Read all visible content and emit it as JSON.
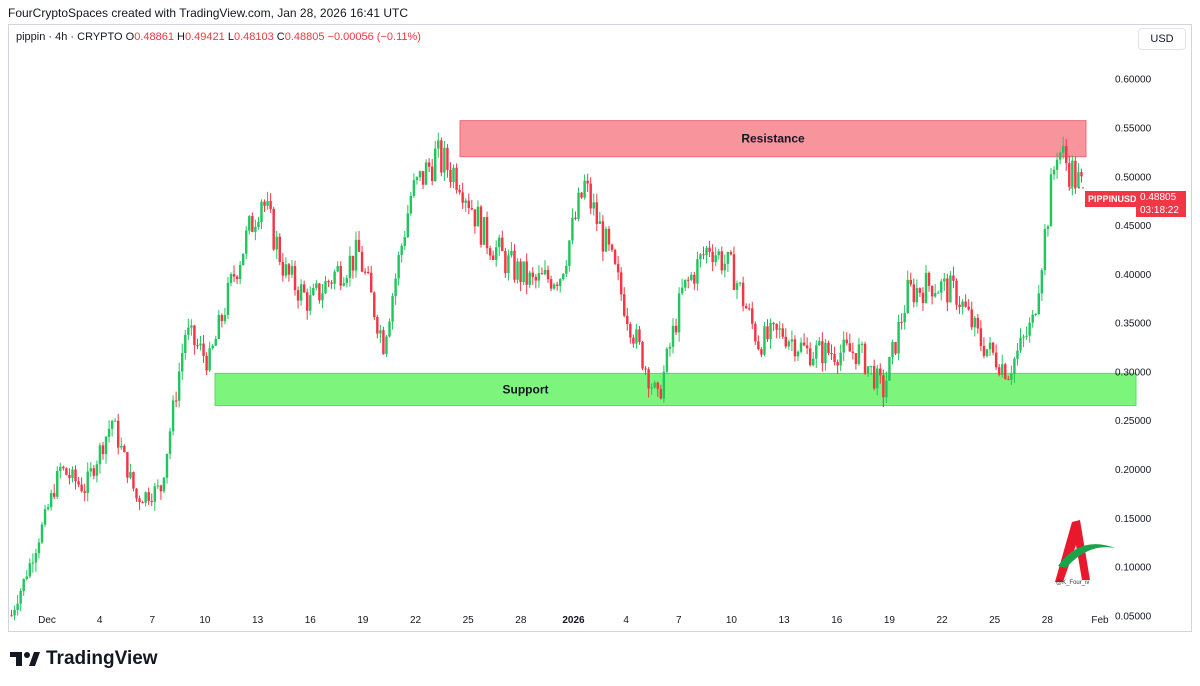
{
  "header": {
    "created_line": "FourCryptoSpaces created with TradingView.com, Jan 28, 2026 16:41 UTC"
  },
  "legend": {
    "prefix": "pippin · 4h · CRYPTO",
    "o_label": "O",
    "o_value": "0.48861",
    "h_label": "H",
    "h_value": "0.49421",
    "l_label": "L",
    "l_value": "0.48103",
    "c_label": "C",
    "c_value": "0.48805",
    "change": "−0.00056 (−0.11%)"
  },
  "currency_button": "USD",
  "price_tag": {
    "symbol": "PIPPINUSD",
    "price": "0.48805",
    "countdown": "03:18:22"
  },
  "watermark": {
    "handle": "@K_Four_iv"
  },
  "footer": {
    "brand": "TradingView"
  },
  "colors": {
    "up": "#089981",
    "up_bright": "#22c55e",
    "down": "#f23645",
    "resistance_fill": "#f7949c",
    "support_fill": "#7df57d"
  },
  "chart_data": {
    "type": "candlestick",
    "symbol": "pippin",
    "timeframe": "4h",
    "y_axis": {
      "ticks": [
        "0.60000",
        "0.55000",
        "0.50000",
        "0.45000",
        "0.40000",
        "0.35000",
        "0.30000",
        "0.25000",
        "0.20000",
        "0.15000",
        "0.10000",
        "0.05000"
      ],
      "range": [
        0.035,
        0.655
      ]
    },
    "x_axis": {
      "ticks": [
        "Dec",
        "4",
        "7",
        "10",
        "13",
        "16",
        "19",
        "22",
        "25",
        "28",
        "2026",
        "4",
        "7",
        "10",
        "13",
        "16",
        "19",
        "22",
        "25",
        "28",
        "Feb"
      ]
    },
    "zones": [
      {
        "label": "Resistance",
        "low": 0.52,
        "high": 0.557
      },
      {
        "label": "Support",
        "low": 0.265,
        "high": 0.298
      }
    ],
    "approx_close_path": [
      {
        "date": "Dec 1",
        "close": 0.05
      },
      {
        "date": "Dec 3",
        "close": 0.12
      },
      {
        "date": "Dec 4",
        "close": 0.2
      },
      {
        "date": "Dec 6",
        "close": 0.18
      },
      {
        "date": "Dec 7",
        "close": 0.25
      },
      {
        "date": "Dec 8",
        "close": 0.17
      },
      {
        "date": "Dec 9",
        "close": 0.18
      },
      {
        "date": "Dec 10",
        "close": 0.34
      },
      {
        "date": "Dec 12",
        "close": 0.31
      },
      {
        "date": "Dec 15",
        "close": 0.4
      },
      {
        "date": "Dec 16",
        "close": 0.48
      },
      {
        "date": "Dec 17",
        "close": 0.4
      },
      {
        "date": "Dec 18",
        "close": 0.37
      },
      {
        "date": "Dec 20",
        "close": 0.4
      },
      {
        "date": "Dec 21",
        "close": 0.42
      },
      {
        "date": "Dec 22",
        "close": 0.33
      },
      {
        "date": "Dec 24",
        "close": 0.48
      },
      {
        "date": "Dec 25",
        "close": 0.52
      },
      {
        "date": "Dec 26",
        "close": 0.5
      },
      {
        "date": "Dec 28",
        "close": 0.44
      },
      {
        "date": "Dec 30",
        "close": 0.41
      },
      {
        "date": "Jan 1",
        "close": 0.39
      },
      {
        "date": "Jan 3",
        "close": 0.4
      },
      {
        "date": "Jan 4",
        "close": 0.49
      },
      {
        "date": "Jan 5",
        "close": 0.42
      },
      {
        "date": "Jan 6",
        "close": 0.34
      },
      {
        "date": "Jan 7",
        "close": 0.27
      },
      {
        "date": "Jan 8",
        "close": 0.38
      },
      {
        "date": "Jan 9",
        "close": 0.43
      },
      {
        "date": "Jan 10",
        "close": 0.4
      },
      {
        "date": "Jan 11",
        "close": 0.33
      },
      {
        "date": "Jan 13",
        "close": 0.34
      },
      {
        "date": "Jan 15",
        "close": 0.32
      },
      {
        "date": "Jan 17",
        "close": 0.32
      },
      {
        "date": "Jan 19",
        "close": 0.32
      },
      {
        "date": "Jan 20",
        "close": 0.28
      },
      {
        "date": "Jan 21",
        "close": 0.38
      },
      {
        "date": "Jan 22",
        "close": 0.39
      },
      {
        "date": "Jan 24",
        "close": 0.38
      },
      {
        "date": "Jan 25",
        "close": 0.33
      },
      {
        "date": "Jan 26",
        "close": 0.3
      },
      {
        "date": "Jan 27",
        "close": 0.35
      },
      {
        "date": "Jan 28",
        "close": 0.53
      },
      {
        "date": "Jan 28 16:00",
        "close": 0.488
      }
    ]
  }
}
